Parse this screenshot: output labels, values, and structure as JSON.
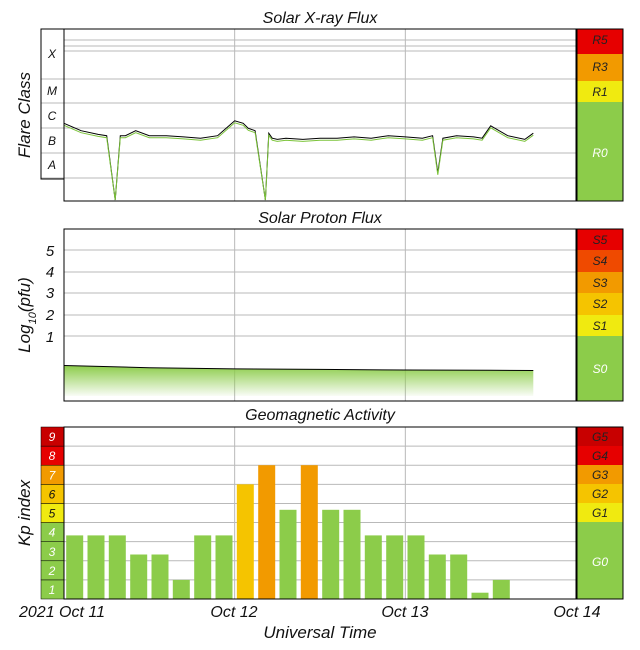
{
  "colors": {
    "green": "#8ccc4a",
    "yellow": "#f0ea10",
    "gold": "#f5c400",
    "orange": "#f29a00",
    "redorange": "#ef4a00",
    "red": "#e60000",
    "darkred": "#c80000"
  },
  "chart_data": [
    {
      "type": "line",
      "title": "Solar X-ray Flux",
      "ylabel": "Flare Class",
      "class_labels": [
        "X",
        "M",
        "C",
        "B",
        "A"
      ],
      "scale_labels": [
        "R5",
        "R3",
        "R1",
        "R0"
      ],
      "x_days": [
        0,
        3
      ],
      "series": [
        {
          "x": [
            0.0,
            0.1,
            0.2,
            0.25,
            0.3,
            0.33,
            0.36,
            0.42,
            0.5,
            0.6,
            0.7,
            0.8,
            0.9,
            1.0,
            1.05,
            1.08,
            1.12,
            1.18,
            1.2,
            1.22,
            1.25,
            1.3,
            1.4,
            1.5,
            1.6,
            1.7,
            1.8,
            1.9,
            2.0,
            2.1,
            2.16,
            2.19,
            2.22,
            2.3,
            2.4,
            2.45,
            2.5,
            2.6,
            2.7,
            2.73,
            2.75
          ],
          "y": [
            -6.8,
            -7.1,
            -7.25,
            -7.3,
            -9.9,
            -7.3,
            -7.3,
            -7.1,
            -7.3,
            -7.3,
            -7.35,
            -7.4,
            -7.3,
            -6.7,
            -6.8,
            -7.0,
            -7.1,
            -9.9,
            -7.2,
            -7.4,
            -7.45,
            -7.4,
            -7.45,
            -7.4,
            -7.4,
            -7.35,
            -7.4,
            -7.3,
            -7.35,
            -7.4,
            -7.3,
            -8.8,
            -7.4,
            -7.3,
            -7.35,
            -7.4,
            -6.9,
            -7.3,
            -7.45,
            -7.3,
            -7.2
          ]
        }
      ]
    },
    {
      "type": "area",
      "title": "Solar Proton Flux",
      "ylabel": "Log10(pfu)",
      "ylabel_main": "Log",
      "ylabel_sub": "10",
      "ylabel_rest": "(pfu)",
      "yticks": [
        "5",
        "4",
        "3",
        "2",
        "1"
      ],
      "ylim": [
        -1.5,
        6
      ],
      "scale_labels": [
        "S5",
        "S4",
        "S3",
        "S2",
        "S1",
        "S0"
      ],
      "series": [
        {
          "x": [
            0.0,
            0.5,
            1.0,
            1.5,
            2.0,
            2.5,
            2.75
          ],
          "y": [
            0.05,
            -0.05,
            -0.1,
            -0.12,
            -0.15,
            -0.16,
            -0.17
          ]
        }
      ]
    },
    {
      "type": "bar",
      "title": "Geomagnetic Activity",
      "ylabel": "Kp index",
      "xlabel": "Universal Time",
      "ylim": [
        0,
        9
      ],
      "kp_scale_labels": [
        "9",
        "8",
        "7",
        "6",
        "5",
        "4",
        "3",
        "2",
        "1"
      ],
      "scale_labels": [
        "G5",
        "G4",
        "G3",
        "G2",
        "G1",
        "G0"
      ],
      "x_labels": [
        "2021 Oct 11",
        "Oct 12",
        "Oct 13",
        "Oct 14"
      ],
      "values": [
        3.33,
        3.33,
        3.33,
        2.33,
        2.33,
        1.0,
        3.33,
        3.33,
        6.0,
        7.0,
        4.67,
        7.0,
        4.67,
        4.67,
        3.33,
        3.33,
        3.33,
        2.33,
        2.33,
        0.33,
        1.0
      ]
    }
  ]
}
